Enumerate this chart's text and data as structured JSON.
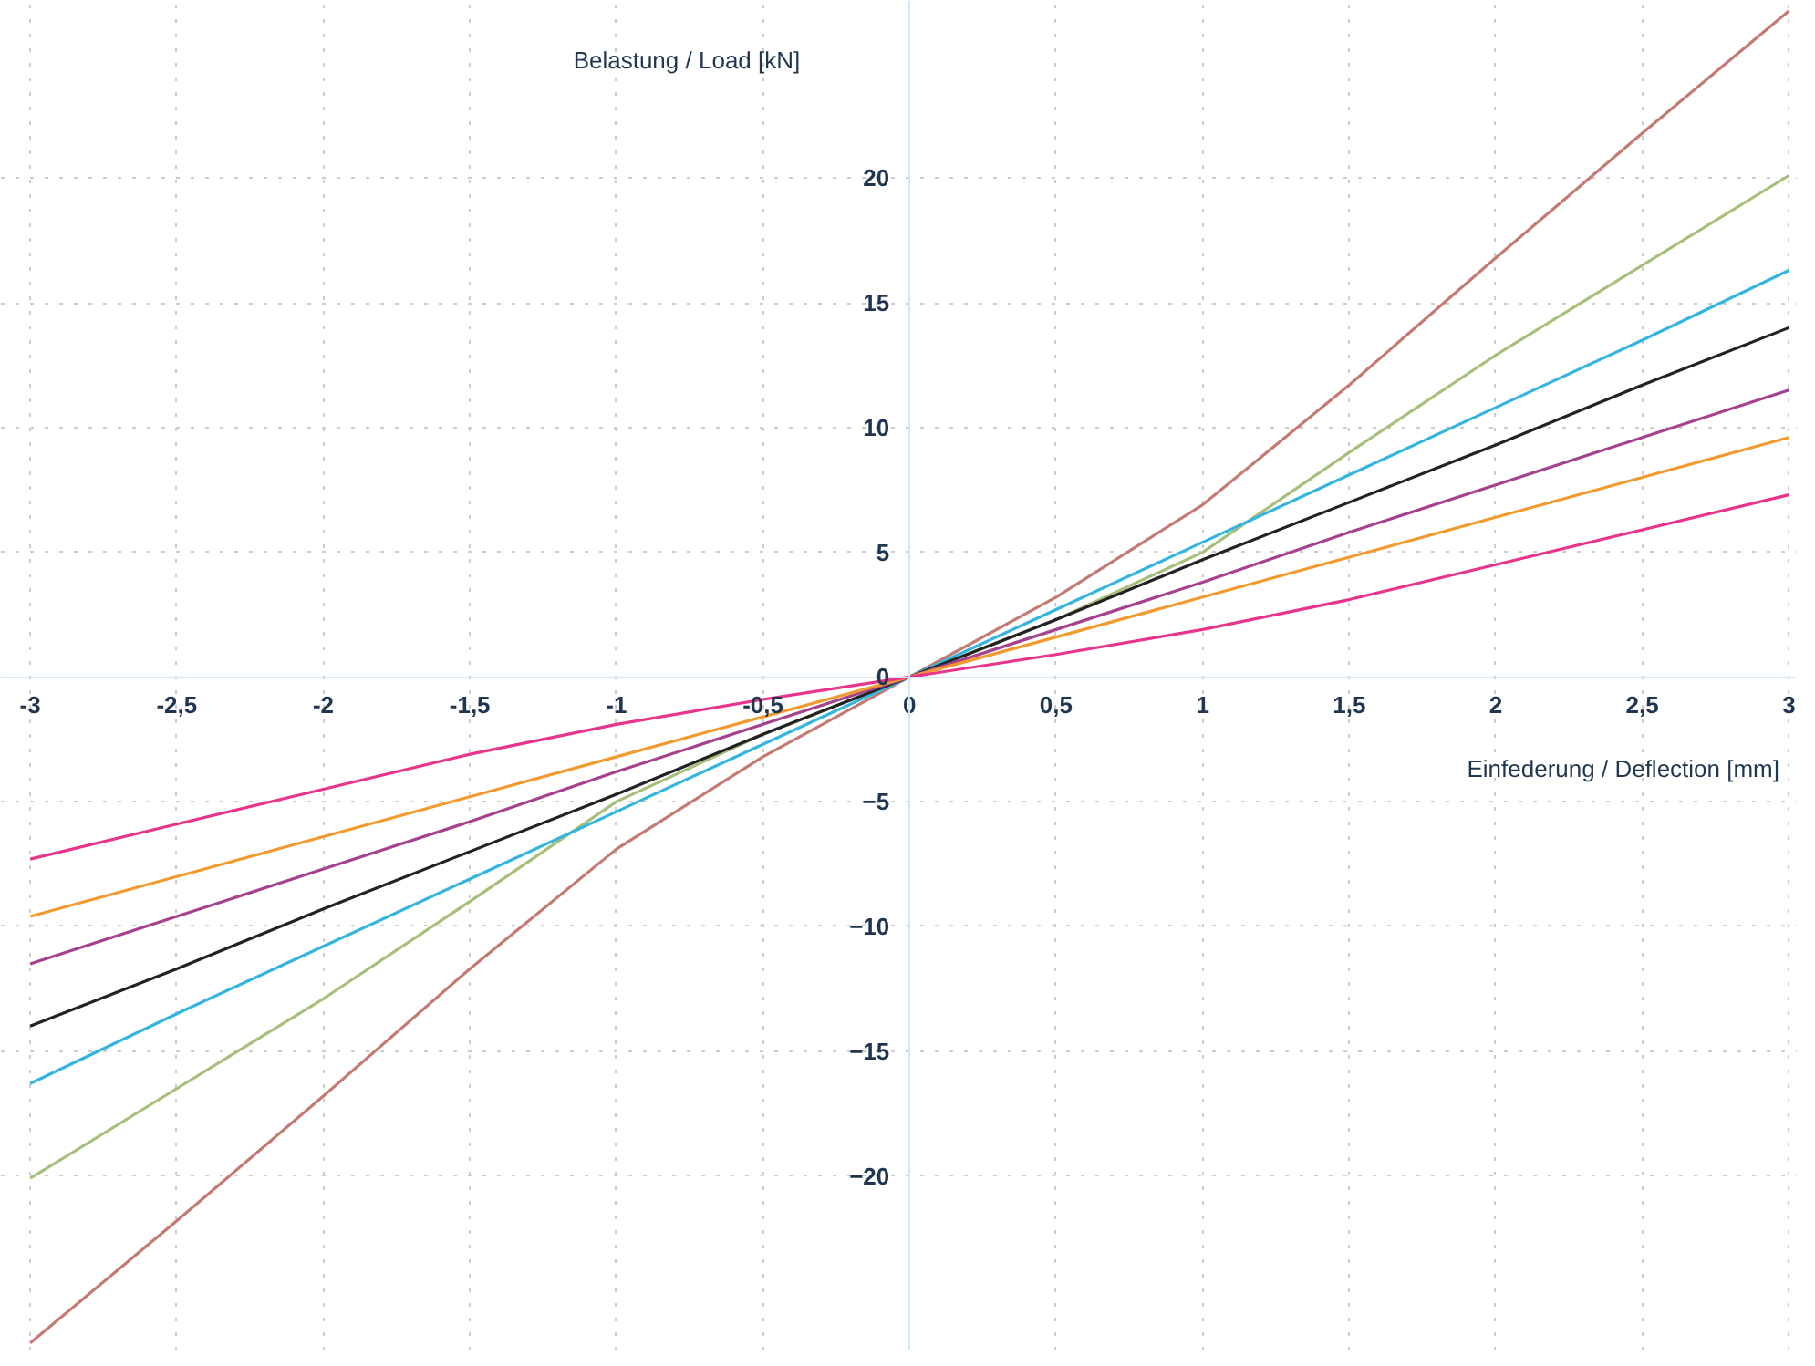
{
  "chart_data": {
    "type": "line",
    "xlabel": "Einfederung / Deflection [mm]",
    "ylabel": "Belastung / Load [kN]",
    "x": [
      -3,
      -2.5,
      -2,
      -1.5,
      -1,
      -0.5,
      0,
      0.5,
      1,
      1.5,
      2,
      2.5,
      3
    ],
    "xlim": [
      -3.1,
      3.03
    ],
    "ylim": [
      -27,
      27.1
    ],
    "xticks": [
      {
        "value": -3,
        "label": "-3"
      },
      {
        "value": -2.5,
        "label": "-2,5"
      },
      {
        "value": -2,
        "label": "-2"
      },
      {
        "value": -1.5,
        "label": "-1,5"
      },
      {
        "value": -1,
        "label": "-1"
      },
      {
        "value": -0.5,
        "label": "-0,5"
      },
      {
        "value": 0,
        "label": "0"
      },
      {
        "value": 0.5,
        "label": "0,5"
      },
      {
        "value": 1,
        "label": "1"
      },
      {
        "value": 1.5,
        "label": "1,5"
      },
      {
        "value": 2,
        "label": "2"
      },
      {
        "value": 2.5,
        "label": "2,5"
      },
      {
        "value": 3,
        "label": "3"
      }
    ],
    "yticks": [
      -20,
      -15,
      -10,
      -5,
      0,
      5,
      10,
      15,
      20
    ],
    "grid": true,
    "line_style": "solid",
    "series": [
      {
        "color": "#c47a72",
        "values": [
          -26.7,
          -21.8,
          -16.8,
          -11.7,
          -6.9,
          -3.2,
          0,
          3.2,
          6.9,
          11.7,
          16.8,
          21.8,
          26.7
        ]
      },
      {
        "color": "#a6bf7a",
        "values": [
          -20.1,
          -16.5,
          -12.9,
          -9.0,
          -5.0,
          -2.3,
          0,
          2.3,
          5.0,
          9.0,
          12.9,
          16.5,
          20.1
        ]
      },
      {
        "color": "#33b5e0",
        "values": [
          -16.3,
          -13.5,
          -10.8,
          -8.1,
          -5.4,
          -2.7,
          0,
          2.7,
          5.4,
          8.1,
          10.8,
          13.5,
          16.3
        ]
      },
      {
        "color": "#222222",
        "values": [
          -14.0,
          -11.7,
          -9.3,
          -7.0,
          -4.7,
          -2.3,
          0,
          2.3,
          4.7,
          7.0,
          9.3,
          11.7,
          14.0
        ]
      },
      {
        "color": "#a5418e",
        "values": [
          -11.5,
          -9.6,
          -7.7,
          -5.8,
          -3.8,
          -1.9,
          0,
          1.9,
          3.8,
          5.8,
          7.7,
          9.6,
          11.5
        ]
      },
      {
        "color": "#f29a2e",
        "values": [
          -9.6,
          -8.0,
          -6.4,
          -4.8,
          -3.2,
          -1.6,
          0,
          1.6,
          3.2,
          4.8,
          6.4,
          8.0,
          9.6
        ]
      },
      {
        "color": "#e8348a",
        "values": [
          -7.3,
          -5.9,
          -4.5,
          -3.1,
          -1.9,
          -0.9,
          0,
          0.9,
          1.9,
          3.1,
          4.5,
          5.9,
          7.3
        ]
      }
    ]
  }
}
